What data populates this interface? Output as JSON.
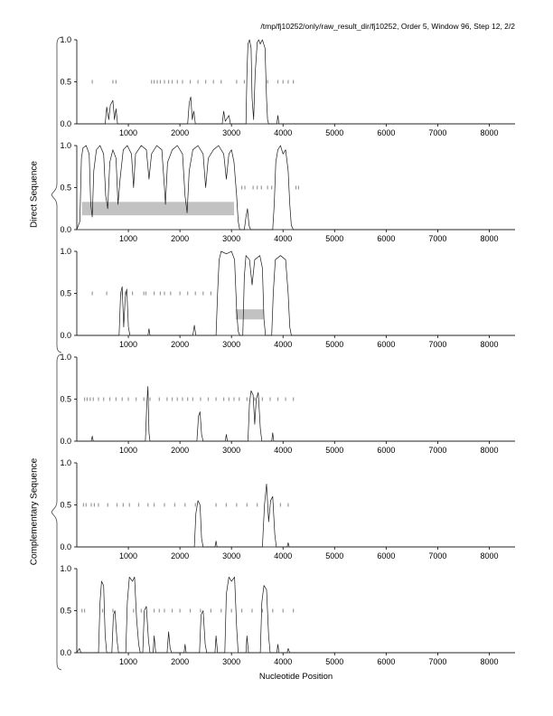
{
  "header": {
    "title": "/tmp/fj10252/only/raw_result_dir/fj10252, Order 5, Window 96, Step 12, 2/2"
  },
  "groups": {
    "direct": "Direct Sequence",
    "complementary": "Complementary Sequence"
  },
  "axis": {
    "xlabel": "Nucleotide Position",
    "xlim": [
      0,
      8500
    ],
    "ylim": [
      0,
      1
    ],
    "xticks": [
      1000,
      2000,
      3000,
      4000,
      5000,
      6000,
      7000,
      8000
    ],
    "ytick_values": [
      0,
      0.5,
      1
    ],
    "ytick_labels": [
      "0.0",
      "0.5",
      "1.0"
    ]
  },
  "colors": {
    "line": "#1a1a1a",
    "marker": "#9a9a9a",
    "bar": "#c2c2c2",
    "axis": "#000000"
  },
  "chart_data": [
    {
      "name": "direct-1",
      "type": "line",
      "group": "Direct Sequence",
      "points": [
        [
          0,
          0
        ],
        [
          550,
          0
        ],
        [
          580,
          0.2
        ],
        [
          620,
          0.05
        ],
        [
          650,
          0.22
        ],
        [
          700,
          0.28
        ],
        [
          730,
          0.05
        ],
        [
          760,
          0.18
        ],
        [
          790,
          0
        ],
        [
          2150,
          0
        ],
        [
          2180,
          0.25
        ],
        [
          2210,
          0.32
        ],
        [
          2240,
          0.05
        ],
        [
          2270,
          0.15
        ],
        [
          2300,
          0
        ],
        [
          2820,
          0
        ],
        [
          2850,
          0.15
        ],
        [
          2880,
          0.03
        ],
        [
          2950,
          0.1
        ],
        [
          2980,
          0
        ],
        [
          3280,
          0
        ],
        [
          3300,
          0.6
        ],
        [
          3320,
          0.95
        ],
        [
          3350,
          1.0
        ],
        [
          3380,
          0.9
        ],
        [
          3400,
          0.3
        ],
        [
          3430,
          0.05
        ],
        [
          3460,
          0.6
        ],
        [
          3500,
          0.97
        ],
        [
          3530,
          1.0
        ],
        [
          3560,
          0.95
        ],
        [
          3600,
          1.0
        ],
        [
          3650,
          0.9
        ],
        [
          3680,
          0.3
        ],
        [
          3700,
          0.05
        ],
        [
          3720,
          0
        ],
        [
          3880,
          0
        ],
        [
          3900,
          0.1
        ],
        [
          3920,
          0
        ],
        [
          8500,
          0
        ]
      ],
      "markers": {
        "y": 0.5,
        "x": [
          300,
          700,
          760,
          1450,
          1500,
          1560,
          1620,
          1700,
          1780,
          1850,
          1950,
          2050,
          2200,
          2350,
          2500,
          2650,
          2800,
          3100,
          3250,
          3700,
          3900,
          4000,
          4100,
          4200
        ]
      },
      "gray_bar": null
    },
    {
      "name": "direct-2",
      "type": "line",
      "group": "Direct Sequence",
      "points": [
        [
          0,
          0
        ],
        [
          60,
          0.1
        ],
        [
          90,
          0.85
        ],
        [
          120,
          0.97
        ],
        [
          180,
          1.0
        ],
        [
          240,
          0.9
        ],
        [
          270,
          0.3
        ],
        [
          300,
          0.15
        ],
        [
          330,
          0.7
        ],
        [
          380,
          0.95
        ],
        [
          450,
          1.0
        ],
        [
          520,
          0.9
        ],
        [
          560,
          0.4
        ],
        [
          600,
          0.25
        ],
        [
          640,
          0.8
        ],
        [
          700,
          0.95
        ],
        [
          760,
          0.85
        ],
        [
          800,
          0.3
        ],
        [
          840,
          0.6
        ],
        [
          900,
          0.95
        ],
        [
          980,
          1.0
        ],
        [
          1060,
          0.9
        ],
        [
          1100,
          0.5
        ],
        [
          1140,
          0.9
        ],
        [
          1250,
          1.0
        ],
        [
          1350,
          0.95
        ],
        [
          1400,
          0.6
        ],
        [
          1450,
          0.9
        ],
        [
          1550,
          1.0
        ],
        [
          1650,
          0.95
        ],
        [
          1700,
          0.5
        ],
        [
          1720,
          0.3
        ],
        [
          1760,
          0.8
        ],
        [
          1850,
          0.95
        ],
        [
          1950,
          1.0
        ],
        [
          2050,
          0.9
        ],
        [
          2100,
          0.4
        ],
        [
          2140,
          0.2
        ],
        [
          2180,
          0.7
        ],
        [
          2250,
          0.95
        ],
        [
          2350,
          1.0
        ],
        [
          2450,
          0.9
        ],
        [
          2500,
          0.5
        ],
        [
          2550,
          0.85
        ],
        [
          2650,
          0.95
        ],
        [
          2750,
          1.0
        ],
        [
          2850,
          0.9
        ],
        [
          2900,
          0.6
        ],
        [
          2950,
          0.9
        ],
        [
          3000,
          0.95
        ],
        [
          3050,
          0.8
        ],
        [
          3100,
          0.4
        ],
        [
          3130,
          0.1
        ],
        [
          3160,
          0
        ],
        [
          3250,
          0
        ],
        [
          3280,
          0.15
        ],
        [
          3310,
          0.25
        ],
        [
          3340,
          0.05
        ],
        [
          3370,
          0
        ],
        [
          3800,
          0
        ],
        [
          3830,
          0.3
        ],
        [
          3860,
          0.8
        ],
        [
          3900,
          0.95
        ],
        [
          3950,
          1.0
        ],
        [
          4000,
          0.9
        ],
        [
          4050,
          0.95
        ],
        [
          4100,
          0.7
        ],
        [
          4130,
          0.3
        ],
        [
          4160,
          0.05
        ],
        [
          4200,
          0
        ],
        [
          8500,
          0
        ]
      ],
      "markers": {
        "y": 0.5,
        "x": [
          3200,
          3260,
          3420,
          3500,
          3580,
          3700,
          3780,
          4250,
          4300
        ]
      },
      "gray_bar": {
        "x0": 100,
        "x1": 3050,
        "y0": 0.17,
        "y1": 0.33
      }
    },
    {
      "name": "direct-3",
      "type": "line",
      "group": "Direct Sequence",
      "points": [
        [
          0,
          0
        ],
        [
          820,
          0
        ],
        [
          850,
          0.5
        ],
        [
          880,
          0.58
        ],
        [
          910,
          0.1
        ],
        [
          940,
          0.45
        ],
        [
          970,
          0.55
        ],
        [
          1000,
          0.1
        ],
        [
          1030,
          0
        ],
        [
          1380,
          0
        ],
        [
          1400,
          0.08
        ],
        [
          1420,
          0
        ],
        [
          2250,
          0
        ],
        [
          2280,
          0.12
        ],
        [
          2310,
          0
        ],
        [
          2700,
          0
        ],
        [
          2730,
          0.5
        ],
        [
          2760,
          0.9
        ],
        [
          2800,
          1.0
        ],
        [
          2900,
          0.97
        ],
        [
          3000,
          1.0
        ],
        [
          3060,
          0.9
        ],
        [
          3100,
          0.3
        ],
        [
          3130,
          0.05
        ],
        [
          3160,
          0
        ],
        [
          3220,
          0
        ],
        [
          3250,
          0.7
        ],
        [
          3280,
          0.95
        ],
        [
          3350,
          0.9
        ],
        [
          3400,
          0.6
        ],
        [
          3450,
          0.9
        ],
        [
          3550,
          0.95
        ],
        [
          3600,
          0.8
        ],
        [
          3630,
          0.2
        ],
        [
          3660,
          0
        ],
        [
          3780,
          0
        ],
        [
          3810,
          0.5
        ],
        [
          3850,
          0.9
        ],
        [
          3950,
          0.95
        ],
        [
          4050,
          0.9
        ],
        [
          4100,
          0.5
        ],
        [
          4130,
          0.1
        ],
        [
          4160,
          0
        ],
        [
          8500,
          0
        ]
      ],
      "markers": {
        "y": 0.5,
        "x": [
          300,
          580,
          880,
          940,
          1080,
          1300,
          1340,
          1500,
          1620,
          1700,
          1820,
          2000,
          2150,
          2300,
          2450,
          2600
        ]
      },
      "gray_bar": {
        "x0": 3080,
        "x1": 3620,
        "y0": 0.19,
        "y1": 0.31
      }
    },
    {
      "name": "comp-1",
      "type": "line",
      "group": "Complementary Sequence",
      "points": [
        [
          0,
          0
        ],
        [
          280,
          0
        ],
        [
          300,
          0.06
        ],
        [
          320,
          0
        ],
        [
          1330,
          0
        ],
        [
          1355,
          0.4
        ],
        [
          1380,
          0.65
        ],
        [
          1400,
          0.1
        ],
        [
          1420,
          0
        ],
        [
          2330,
          0
        ],
        [
          2360,
          0.3
        ],
        [
          2390,
          0.35
        ],
        [
          2420,
          0.08
        ],
        [
          2450,
          0
        ],
        [
          2880,
          0
        ],
        [
          2900,
          0.08
        ],
        [
          2920,
          0
        ],
        [
          3320,
          0
        ],
        [
          3350,
          0.45
        ],
        [
          3380,
          0.6
        ],
        [
          3420,
          0.55
        ],
        [
          3450,
          0.2
        ],
        [
          3480,
          0.5
        ],
        [
          3520,
          0.58
        ],
        [
          3560,
          0.15
        ],
        [
          3590,
          0
        ],
        [
          3780,
          0
        ],
        [
          3800,
          0.1
        ],
        [
          3820,
          0
        ],
        [
          8500,
          0
        ]
      ],
      "markers": {
        "y": 0.5,
        "x": [
          150,
          200,
          260,
          320,
          420,
          520,
          640,
          760,
          880,
          1000,
          1150,
          1300,
          1420,
          1600,
          1750,
          1850,
          1950,
          2050,
          2150,
          2250,
          2400,
          2550,
          2700,
          2850,
          2950,
          3050,
          3150,
          3300,
          3450,
          3600,
          3750,
          3900,
          4050,
          4200
        ]
      },
      "gray_bar": null
    },
    {
      "name": "comp-2",
      "type": "line",
      "group": "Complementary Sequence",
      "points": [
        [
          0,
          0
        ],
        [
          2280,
          0
        ],
        [
          2310,
          0.4
        ],
        [
          2350,
          0.55
        ],
        [
          2390,
          0.5
        ],
        [
          2420,
          0.1
        ],
        [
          2450,
          0
        ],
        [
          2680,
          0
        ],
        [
          2700,
          0.07
        ],
        [
          2720,
          0
        ],
        [
          3600,
          0
        ],
        [
          3640,
          0.5
        ],
        [
          3680,
          0.75
        ],
        [
          3720,
          0.3
        ],
        [
          3760,
          0.55
        ],
        [
          3800,
          0.6
        ],
        [
          3840,
          0.15
        ],
        [
          3870,
          0
        ],
        [
          4080,
          0
        ],
        [
          4100,
          0.05
        ],
        [
          4120,
          0
        ],
        [
          8500,
          0
        ]
      ],
      "markers": {
        "y": 0.5,
        "x": [
          130,
          180,
          280,
          340,
          420,
          600,
          780,
          900,
          1020,
          1200,
          1380,
          1500,
          1700,
          1900,
          2100,
          2300,
          2700,
          2900,
          3100,
          3300,
          3500,
          3950,
          4100
        ]
      },
      "gray_bar": null
    },
    {
      "name": "comp-3",
      "type": "line",
      "group": "Complementary Sequence",
      "points": [
        [
          0,
          0
        ],
        [
          50,
          0.05
        ],
        [
          80,
          0
        ],
        [
          420,
          0
        ],
        [
          450,
          0.6
        ],
        [
          480,
          0.85
        ],
        [
          520,
          0.8
        ],
        [
          550,
          0.2
        ],
        [
          580,
          0
        ],
        [
          680,
          0
        ],
        [
          710,
          0.45
        ],
        [
          740,
          0.5
        ],
        [
          780,
          0.15
        ],
        [
          810,
          0
        ],
        [
          950,
          0
        ],
        [
          980,
          0.6
        ],
        [
          1020,
          0.9
        ],
        [
          1080,
          0.85
        ],
        [
          1120,
          0.9
        ],
        [
          1160,
          0.4
        ],
        [
          1200,
          0.1
        ],
        [
          1230,
          0
        ],
        [
          1280,
          0
        ],
        [
          1310,
          0.5
        ],
        [
          1350,
          0.55
        ],
        [
          1390,
          0.15
        ],
        [
          1420,
          0
        ],
        [
          1480,
          0
        ],
        [
          1500,
          0.2
        ],
        [
          1530,
          0
        ],
        [
          1750,
          0
        ],
        [
          1780,
          0.25
        ],
        [
          1810,
          0.05
        ],
        [
          1840,
          0
        ],
        [
          2080,
          0
        ],
        [
          2100,
          0.1
        ],
        [
          2120,
          0
        ],
        [
          2380,
          0
        ],
        [
          2410,
          0.45
        ],
        [
          2450,
          0.5
        ],
        [
          2490,
          0.1
        ],
        [
          2520,
          0
        ],
        [
          2680,
          0
        ],
        [
          2700,
          0.2
        ],
        [
          2730,
          0
        ],
        [
          2870,
          0
        ],
        [
          2900,
          0.7
        ],
        [
          2950,
          0.9
        ],
        [
          3000,
          0.85
        ],
        [
          3060,
          0.9
        ],
        [
          3100,
          0.3
        ],
        [
          3130,
          0
        ],
        [
          3280,
          0
        ],
        [
          3300,
          0.2
        ],
        [
          3330,
          0
        ],
        [
          3560,
          0
        ],
        [
          3590,
          0.6
        ],
        [
          3630,
          0.8
        ],
        [
          3680,
          0.75
        ],
        [
          3720,
          0.2
        ],
        [
          3750,
          0
        ],
        [
          3880,
          0
        ],
        [
          3900,
          0.1
        ],
        [
          3920,
          0
        ],
        [
          4080,
          0
        ],
        [
          4100,
          0.05
        ],
        [
          4130,
          0
        ],
        [
          8500,
          0
        ]
      ],
      "markers": {
        "y": 0.5,
        "x": [
          100,
          150,
          500,
          700,
          1100,
          1250,
          1500,
          1600,
          1700,
          1850,
          2000,
          2200,
          2400,
          2600,
          2800,
          3000,
          3200,
          3400,
          3600,
          3800,
          4000,
          4200
        ]
      },
      "gray_bar": null
    }
  ]
}
